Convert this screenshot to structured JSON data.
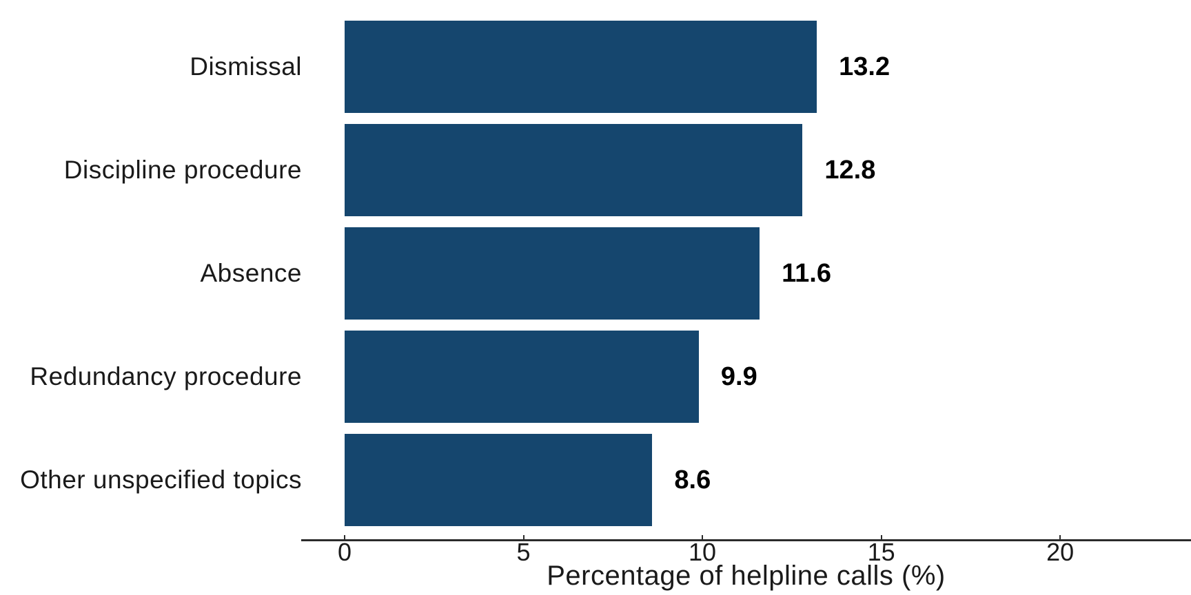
{
  "chart_data": {
    "type": "bar",
    "orientation": "horizontal",
    "title": "",
    "categories": [
      "Dismissal",
      "Discipline procedure",
      "Absence",
      "Redundancy procedure",
      "Other unspecified topics"
    ],
    "values": [
      13.2,
      12.8,
      11.6,
      9.9,
      8.6
    ],
    "value_labels": [
      "13.2",
      "12.8",
      "11.6",
      "9.9",
      "8.6"
    ],
    "xlabel": "Percentage of helpline calls (%)",
    "ylabel": "",
    "xlim": [
      0,
      23.6
    ],
    "xticks": [
      0,
      5,
      10,
      15,
      20
    ],
    "grid": false,
    "legend": "none",
    "bar_color": "#15466e",
    "axis_color": "#2b2b2b",
    "text_color": "#1a1a1a"
  }
}
